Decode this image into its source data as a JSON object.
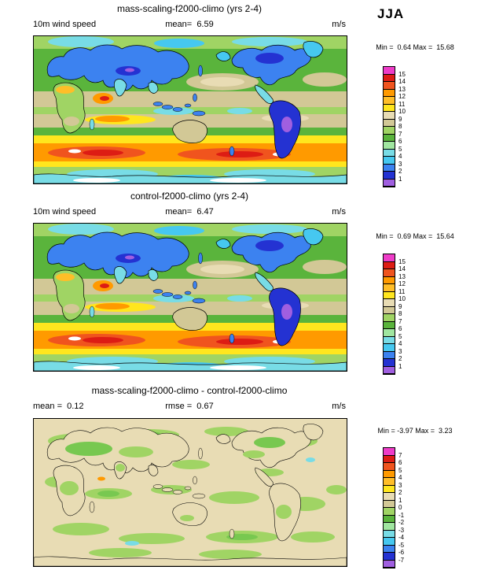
{
  "header": {
    "season_label": "JJA"
  },
  "panels": [
    {
      "title": "mass-scaling-f2000-climo (yrs 2-4)",
      "left_label": "10m wind speed",
      "center_label": "mean=  6.59",
      "units_label": "m/s",
      "minmax_label": "Min =  0.64 Max =  15.68",
      "colorbar_labels": [
        "15",
        "14",
        "13",
        "12",
        "11",
        "10",
        "9",
        "8",
        "7",
        "6",
        "5",
        "4",
        "3",
        "2",
        "1"
      ]
    },
    {
      "title": "control-f2000-climo (yrs 2-4)",
      "left_label": "10m wind speed",
      "center_label": "mean=  6.47",
      "units_label": "m/s",
      "minmax_label": "Min =  0.69 Max =  15.64",
      "colorbar_labels": [
        "15",
        "14",
        "13",
        "12",
        "11",
        "10",
        "9",
        "8",
        "7",
        "6",
        "5",
        "4",
        "3",
        "2",
        "1"
      ]
    },
    {
      "title": "mass-scaling-f2000-climo - control-f2000-climo",
      "left_label": "mean =  0.12",
      "center_label": "rmse =  0.67",
      "units_label": "m/s",
      "minmax_label": "Min = -3.97 Max =  3.23",
      "colorbar_labels": [
        "7",
        "6",
        "5",
        "4",
        "3",
        "2",
        "1",
        "0",
        "-1",
        "-2",
        "-3",
        "-4",
        "-5",
        "-6",
        "-7"
      ]
    }
  ],
  "palette_top_to_bottom": [
    "#ee3cc8",
    "#dd1c14",
    "#f0541e",
    "#ff9a00",
    "#ffbe28",
    "#ffe61e",
    "#e8dcb4",
    "#d2c896",
    "#a0d464",
    "#5ab43c",
    "#a0e6a0",
    "#78dce6",
    "#46c8f0",
    "#3c82f0",
    "#2432d2",
    "#a05fe0"
  ],
  "chart_data": [
    {
      "type": "heatmap",
      "title": "mass-scaling-f2000-climo (yrs 2-4)",
      "variable": "10m wind speed",
      "units": "m/s",
      "season": "JJA",
      "mean": 6.59,
      "min": 0.64,
      "max": 15.68,
      "contour_levels": [
        1,
        2,
        3,
        4,
        5,
        6,
        7,
        8,
        9,
        10,
        11,
        12,
        13,
        14,
        15
      ],
      "projection": "global latitude-longitude map",
      "legend_position": "right"
    },
    {
      "type": "heatmap",
      "title": "control-f2000-climo (yrs 2-4)",
      "variable": "10m wind speed",
      "units": "m/s",
      "season": "JJA",
      "mean": 6.47,
      "min": 0.69,
      "max": 15.64,
      "contour_levels": [
        1,
        2,
        3,
        4,
        5,
        6,
        7,
        8,
        9,
        10,
        11,
        12,
        13,
        14,
        15
      ],
      "projection": "global latitude-longitude map",
      "legend_position": "right"
    },
    {
      "type": "heatmap",
      "title": "mass-scaling-f2000-climo - control-f2000-climo",
      "units": "m/s",
      "mean": 0.12,
      "rmse": 0.67,
      "min": -3.97,
      "max": 3.23,
      "contour_levels": [
        -7,
        -6,
        -5,
        -4,
        -3,
        -2,
        -1,
        0,
        1,
        2,
        3,
        4,
        5,
        6,
        7
      ],
      "projection": "global latitude-longitude map",
      "legend_position": "right"
    }
  ]
}
